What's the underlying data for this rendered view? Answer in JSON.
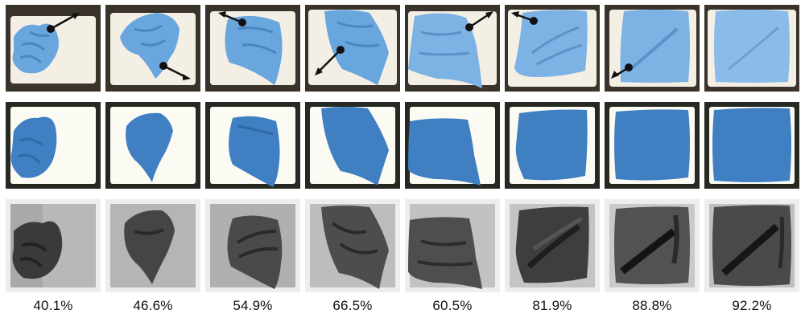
{
  "coverage_labels": [
    "40.1%",
    "46.6%",
    "54.9%",
    "66.5%",
    "60.5%",
    "81.9%",
    "88.8%",
    "92.2%"
  ],
  "colors": {
    "towel_photo": "#6aa6de",
    "towel_sim": "#3f7fc2",
    "cushion": "#f4efe4",
    "background_dark": "#2f2a25",
    "arrow": "#111111"
  },
  "icons": [
    "arrow-icon"
  ]
}
